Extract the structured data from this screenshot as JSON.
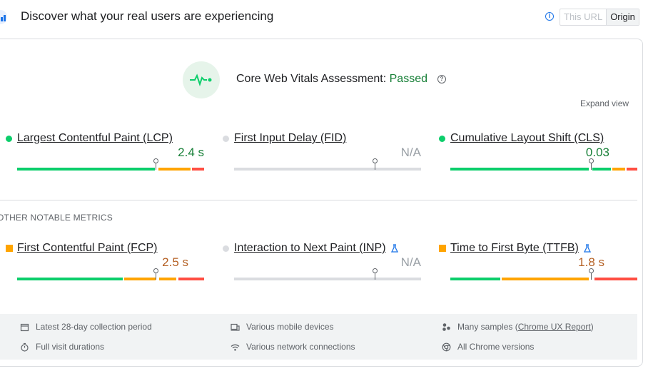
{
  "header": {
    "title": "Discover what your real users are experiencing",
    "toggle": {
      "this_url": "This URL",
      "origin": "Origin"
    }
  },
  "assessment": {
    "label": "Core Web Vitals Assessment:",
    "status": "Passed",
    "expand": "Expand view"
  },
  "core_metrics": [
    {
      "name": "Largest Contentful Paint (LCP)",
      "value": "2.4 s",
      "status": "good",
      "marker_fraction": 0.74
    },
    {
      "name": "First Input Delay (FID)",
      "value": "N/A",
      "status": "none",
      "marker_fraction": 0.75
    },
    {
      "name": "Cumulative Layout Shift (CLS)",
      "value": "0.03",
      "status": "good",
      "marker_fraction": 0.75
    }
  ],
  "other_heading": "OTHER NOTABLE METRICS",
  "other_metrics": [
    {
      "name": "First Contentful Paint (FCP)",
      "value": "2.5 s",
      "status": "average",
      "marker_fraction": 0.74
    },
    {
      "name": "Interaction to Next Paint (INP)",
      "value": "N/A",
      "status": "none",
      "marker_fraction": 0.75
    },
    {
      "name": "Time to First Byte (TTFB)",
      "value": "1.8 s",
      "status": "average",
      "marker_fraction": 0.75
    }
  ],
  "footer": {
    "period": "Latest 28-day collection period",
    "devices": "Various mobile devices",
    "samples_prefix": "Many samples (",
    "samples_link": "Chrome UX Report",
    "samples_suffix": ")",
    "durations": "Full visit durations",
    "network": "Various network connections",
    "versions": "All Chrome versions"
  },
  "colors": {
    "good": "#0cce6b",
    "average": "#ffa400",
    "poor": "#ff4e42",
    "none": "#dadce0",
    "good_text": "#188038",
    "average_text": "#b45f22"
  }
}
